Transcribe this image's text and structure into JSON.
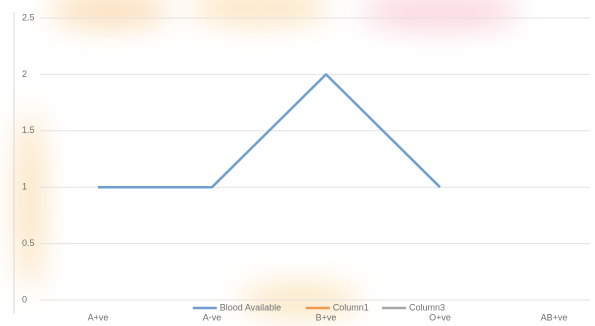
{
  "chart_data": {
    "type": "line",
    "categories": [
      "A+ve",
      "A-ve",
      "B+ve",
      "O+ve",
      "AB+ve"
    ],
    "series": [
      {
        "name": "Blood Available",
        "color": "#6f9fd0",
        "values": [
          1,
          1,
          2,
          1,
          null
        ]
      },
      {
        "name": "Column1",
        "color": "#ed9a4f",
        "values": [
          null,
          null,
          null,
          null,
          null
        ]
      },
      {
        "name": "Column3",
        "color": "#a8a8a8",
        "values": [
          null,
          null,
          null,
          null,
          null
        ]
      }
    ],
    "ylim": [
      0,
      2.5
    ],
    "yticks": [
      0,
      0.5,
      1,
      1.5,
      2,
      2.5
    ],
    "grid": true,
    "legend": "bottom"
  }
}
